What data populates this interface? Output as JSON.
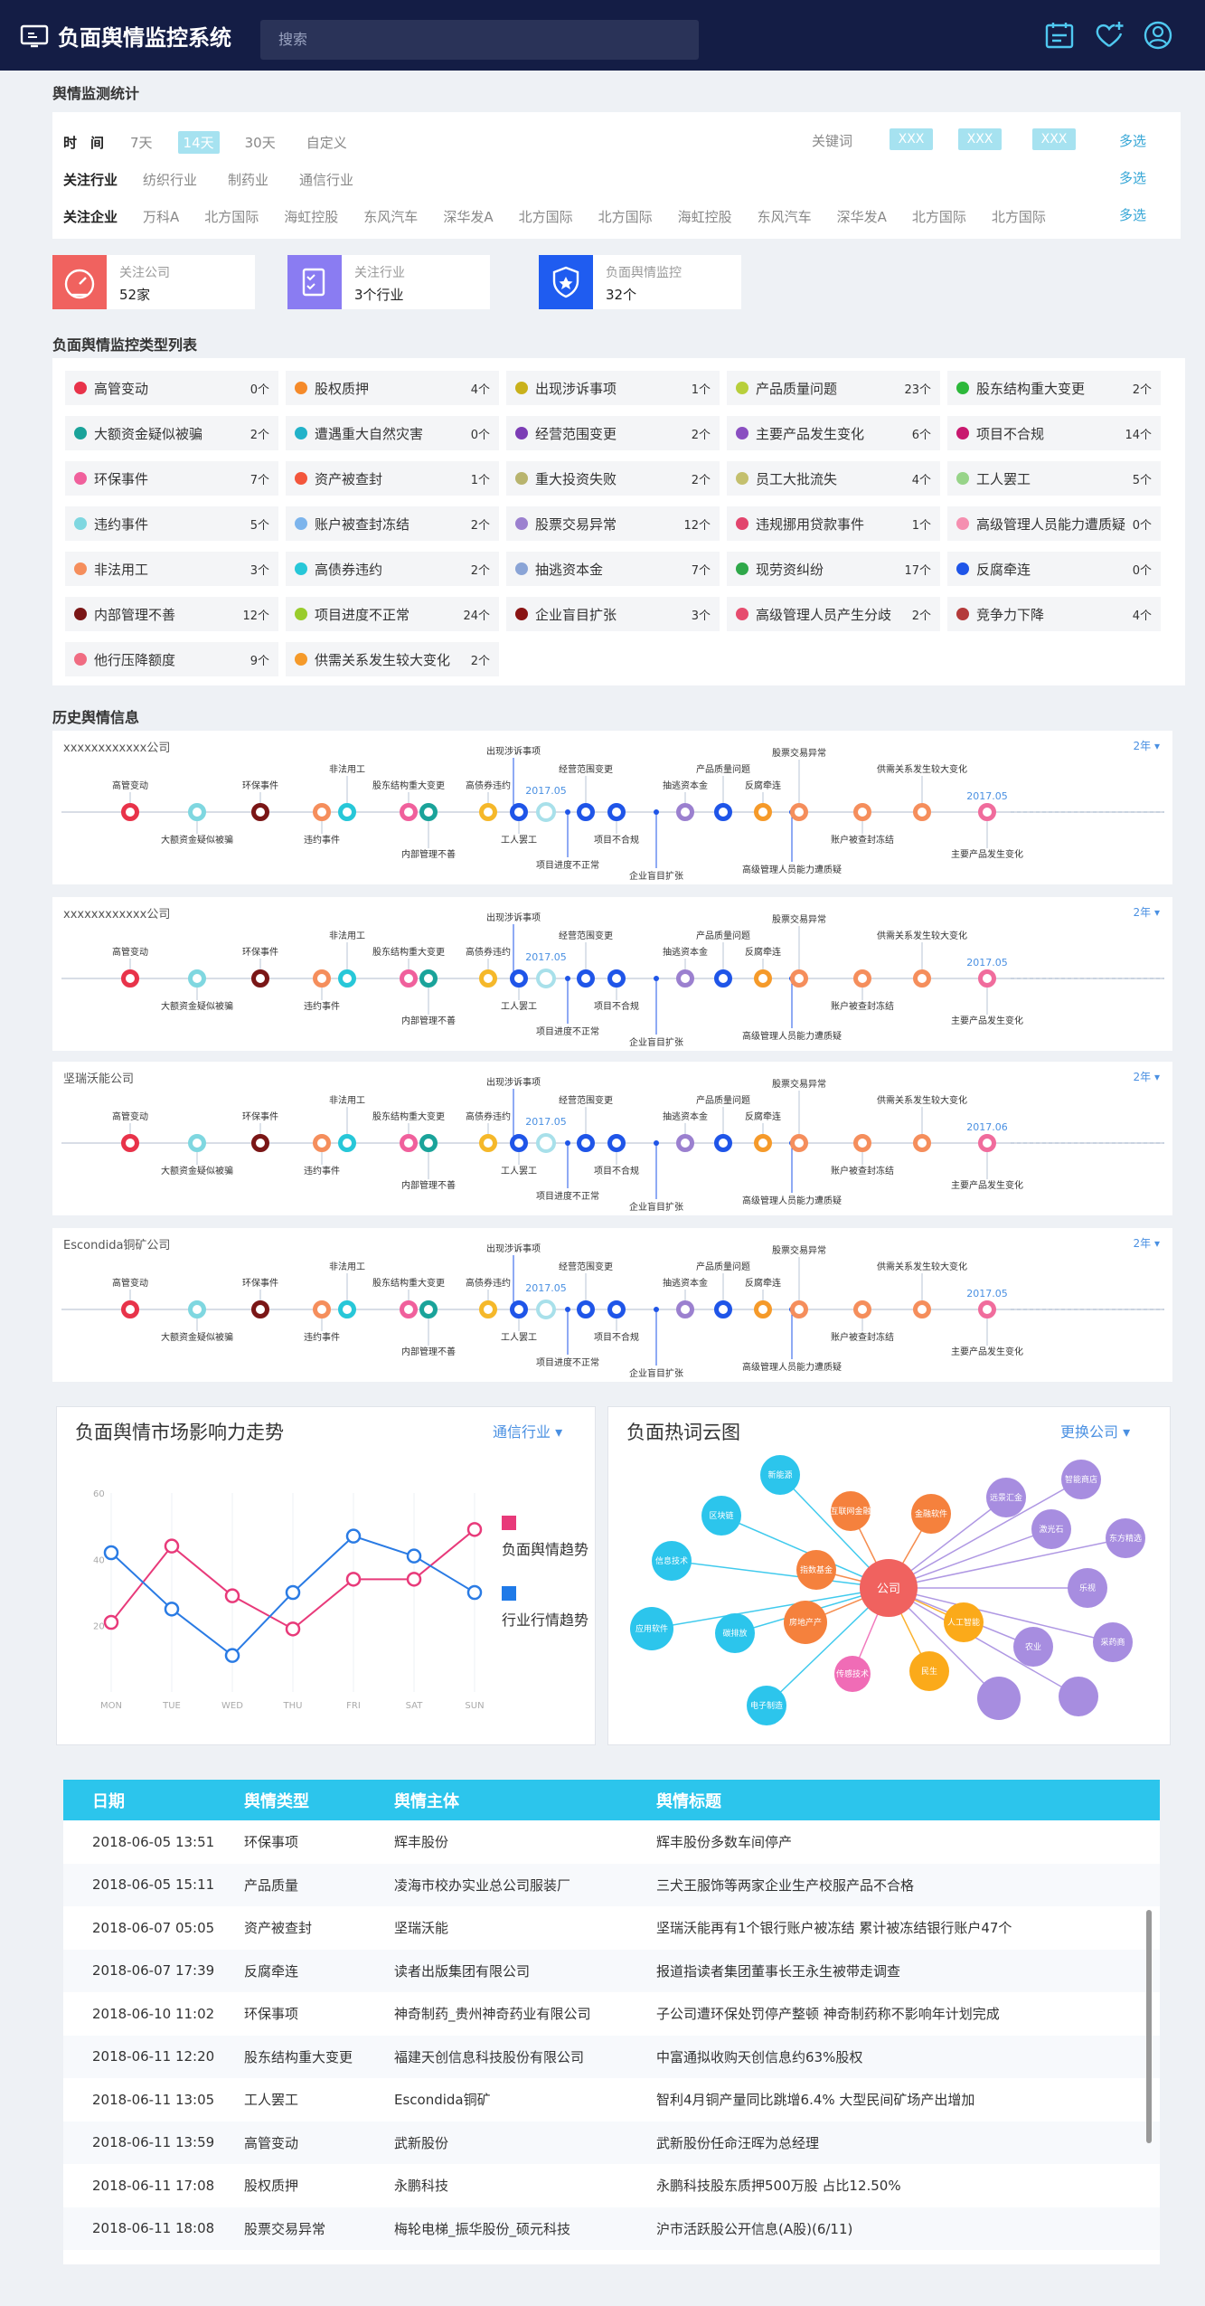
{
  "app": {
    "title": "负面舆情监控系统",
    "search_placeholder": "搜索"
  },
  "stats_title": "舆情监测统计",
  "filters": {
    "time": {
      "label": "时　间",
      "options": [
        "7天",
        "14天",
        "30天",
        "自定义"
      ],
      "active": 1
    },
    "keyword": {
      "label": "关键词",
      "tags": [
        "XXX",
        "XXX",
        "XXX"
      ],
      "more": "多选"
    },
    "industry": {
      "label": "关注行业",
      "options": [
        "纺织行业",
        "制药业",
        "通信行业"
      ],
      "more": "多选"
    },
    "company": {
      "label": "关注企业",
      "options": [
        "万科A",
        "北方国际",
        "海虹控股",
        "东风汽车",
        "深华发A",
        "北方国际",
        "北方国际",
        "海虹控股",
        "东风汽车",
        "深华发A",
        "北方国际",
        "北方国际"
      ],
      "more": "多选"
    }
  },
  "stats": [
    {
      "label": "关注公司",
      "value": "52家",
      "color": "#f0625f",
      "icon": "gauge-icon"
    },
    {
      "label": "关注行业",
      "value": "3个行业",
      "color": "#8a7cf2",
      "icon": "checklist-icon"
    },
    {
      "label": "负面舆情监控",
      "value": "32个",
      "color": "#1f5cf0",
      "icon": "shield-icon"
    }
  ],
  "types_title": "负面舆情监控类型列表",
  "types": [
    {
      "name": "高管变动",
      "count": "0个",
      "color": "#e8334a"
    },
    {
      "name": "股权质押",
      "count": "4个",
      "color": "#f58a2a"
    },
    {
      "name": "出现涉诉事项",
      "count": "1个",
      "color": "#c9b11c"
    },
    {
      "name": "产品质量问题",
      "count": "23个",
      "color": "#b8cf3c"
    },
    {
      "name": "股东结构重大变更",
      "count": "2个",
      "color": "#2db83b"
    },
    {
      "name": "大额资金疑似被骗",
      "count": "2个",
      "color": "#1aa39a"
    },
    {
      "name": "遭遇重大自然灾害",
      "count": "0个",
      "color": "#22b2c9"
    },
    {
      "name": "经营范围变更",
      "count": "2个",
      "color": "#7c3db5"
    },
    {
      "name": "主要产品发生变化",
      "count": "6个",
      "color": "#8a4fc1"
    },
    {
      "name": "项目不合规",
      "count": "14个",
      "color": "#c8186e"
    },
    {
      "name": "环保事件",
      "count": "7个",
      "color": "#f0609c"
    },
    {
      "name": "资产被查封",
      "count": "1个",
      "color": "#f3563c"
    },
    {
      "name": "重大投资失败",
      "count": "2个",
      "color": "#b8b46e"
    },
    {
      "name": "员工大批流失",
      "count": "4个",
      "color": "#c4c06e"
    },
    {
      "name": "工人罢工",
      "count": "5个",
      "color": "#97d489"
    },
    {
      "name": "违约事件",
      "count": "5个",
      "color": "#7fd7e0"
    },
    {
      "name": "账户被查封冻结",
      "count": "2个",
      "color": "#7cb4ec"
    },
    {
      "name": "股票交易异常",
      "count": "12个",
      "color": "#9b80cf"
    },
    {
      "name": "违规挪用贷款事件",
      "count": "1个",
      "color": "#e2456d"
    },
    {
      "name": "高级管理人员能力遭质疑",
      "count": "0个",
      "color": "#f58fb0"
    },
    {
      "name": "非法用工",
      "count": "3个",
      "color": "#f58e5c"
    },
    {
      "name": "高债券违约",
      "count": "2个",
      "color": "#27c7d8"
    },
    {
      "name": "抽逃资本金",
      "count": "7个",
      "color": "#8aa4d6"
    },
    {
      "name": "现劳资纠纷",
      "count": "17个",
      "color": "#2fa84a"
    },
    {
      "name": "反腐牵连",
      "count": "0个",
      "color": "#1f55e8"
    },
    {
      "name": "内部管理不善",
      "count": "12个",
      "color": "#7a1616"
    },
    {
      "name": "项目进度不正常",
      "count": "24个",
      "color": "#99cc2c"
    },
    {
      "name": "企业盲目扩张",
      "count": "3个",
      "color": "#8a1414"
    },
    {
      "name": "高级管理人员产生分歧",
      "count": "2个",
      "color": "#e64c6e"
    },
    {
      "name": "竞争力下降",
      "count": "4个",
      "color": "#b43a3a"
    },
    {
      "name": "他行压降额度",
      "count": "9个",
      "color": "#f06c82"
    },
    {
      "name": "供需关系发生较大变化",
      "count": "2个",
      "color": "#f59a2a"
    }
  ],
  "history_title": "历史舆情信息",
  "timelines": [
    {
      "company": "xxxxxxxxxxxx公司",
      "year": "2年",
      "date1": "2017.05",
      "date2": "2017.05"
    },
    {
      "company": "xxxxxxxxxxxx公司",
      "year": "2年",
      "date1": "2017.05",
      "date2": "2017.05"
    },
    {
      "company": "坚瑞沃能公司",
      "year": "2年",
      "date1": "2017.05",
      "date2": "2017.06"
    },
    {
      "company": "Escondida铜矿公司",
      "year": "2年",
      "date1": "2017.05",
      "date2": "2017.05"
    }
  ],
  "trend": {
    "title": "负面舆情市场影响力走势",
    "link": "通信行业"
  },
  "chart_data": {
    "type": "line",
    "categories": [
      "MON",
      "TUE",
      "WED",
      "THU",
      "FRI",
      "SAT",
      "SUN"
    ],
    "series": [
      {
        "name": "负面舆情趋势",
        "values": [
          21,
          44,
          29,
          19,
          34,
          34,
          49
        ],
        "color": "#e83a7a"
      },
      {
        "name": "行业行情趋势",
        "values": [
          42,
          25,
          11,
          30,
          47,
          41,
          30
        ],
        "color": "#2a7be4"
      }
    ],
    "yticks": [
      20,
      40,
      60
    ],
    "ylim": [
      0,
      60
    ]
  },
  "cloud": {
    "title": "负面热词云图",
    "link": "更换公司",
    "center": "公司",
    "words": [
      "新能源",
      "区块链",
      "信息技术",
      "应用软件",
      "碳排放",
      "电子制造",
      "指数基金",
      "房地产产",
      "互联网金融",
      "金融软件",
      "人工智能",
      "民生",
      "传感技术",
      "远景汇金",
      "激光石",
      "智能商店",
      "东方精选",
      "乐视",
      "农业",
      "采药商"
    ]
  },
  "table": {
    "headers": [
      "日期",
      "舆情类型",
      "舆情主体",
      "舆情标题"
    ],
    "rows": [
      [
        "2018-06-05  13:51",
        "环保事项",
        "辉丰股份",
        "辉丰股份多数车间停产"
      ],
      [
        "2018-06-05 15:11",
        "产品质量",
        "凌海市校办实业总公司服装厂",
        "三犬王服饰等两家企业生产校服产品不合格"
      ],
      [
        "2018-06-07 05:05",
        "资产被查封",
        "坚瑞沃能",
        "坚瑞沃能再有1个银行账户被冻结 累计被冻结银行账户47个"
      ],
      [
        "2018-06-07 17:39",
        "反腐牵连",
        "读者出版集团有限公司",
        "报道指读者集团董事长王永生被带走调查"
      ],
      [
        "2018-06-10 11:02",
        "环保事项",
        "神奇制药_贵州神奇药业有限公司",
        "子公司遭环保处罚停产整顿 神奇制药称不影响年计划完成"
      ],
      [
        "2018-06-11 12:20",
        "股东结构重大变更",
        "福建天创信息科技股份有限公司",
        "中富通拟收购天创信息约63%股权"
      ],
      [
        "2018-06-11 13:05",
        "工人罢工",
        "Escondida铜矿",
        "智利4月铜产量同比跳增6.4% 大型民间矿场产出增加"
      ],
      [
        "2018-06-11 13:59",
        "高管变动",
        "武新股份",
        "武新股份任命汪晖为总经理"
      ],
      [
        "2018-06-11 17:08",
        "股权质押",
        "永鹏科技",
        "永鹏科技股东质押500万股 占比12.50%"
      ],
      [
        "2018-06-11 18:08",
        "股票交易异常",
        "梅轮电梯_振华股份_硕元科技",
        "沪市活跃股公开信息(A股)(6/11)"
      ]
    ]
  }
}
